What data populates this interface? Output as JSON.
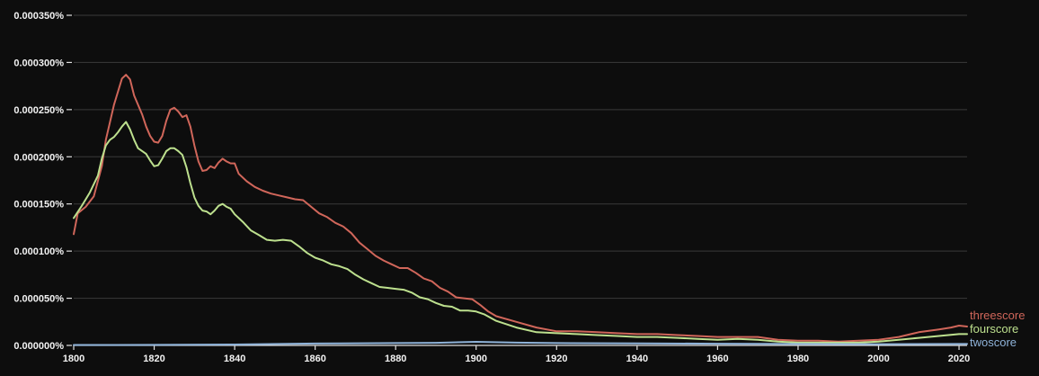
{
  "chart_data": {
    "type": "line",
    "y_tick_labels": [
      "0.000000%",
      "0.000050%",
      "0.000100%",
      "0.000150%",
      "0.000200%",
      "0.000250%",
      "0.000300%",
      "0.000350%"
    ],
    "y_tick_values": [
      0,
      5e-05,
      0.0001,
      0.00015,
      0.0002,
      0.00025,
      0.0003,
      0.00035
    ],
    "x_tick_labels": [
      "1800",
      "1820",
      "1840",
      "1860",
      "1880",
      "1900",
      "1920",
      "1940",
      "1960",
      "1980",
      "2000",
      "2020"
    ],
    "x_tick_values": [
      1800,
      1820,
      1840,
      1860,
      1880,
      1900,
      1920,
      1940,
      1960,
      1980,
      2000,
      2020
    ],
    "xlim": [
      1800,
      2022
    ],
    "ylim": [
      0,
      0.00035
    ],
    "grid": "horizontal",
    "legend_placement": "right-end-of-lines",
    "background_color": "#0d0d0d",
    "grid_color": "#3a3a3a",
    "axis_color": "#e0e0e0",
    "series": [
      {
        "name": "threescore",
        "color": "#d0665a",
        "points": [
          [
            1800,
            0.000118
          ],
          [
            1801,
            0.00014
          ],
          [
            1803,
            0.000147
          ],
          [
            1805,
            0.000158
          ],
          [
            1807,
            0.00019
          ],
          [
            1808,
            0.000218
          ],
          [
            1810,
            0.000255
          ],
          [
            1812,
            0.000283
          ],
          [
            1813,
            0.000287
          ],
          [
            1814,
            0.000282
          ],
          [
            1815,
            0.000265
          ],
          [
            1817,
            0.000245
          ],
          [
            1818,
            0.000232
          ],
          [
            1819,
            0.000222
          ],
          [
            1820,
            0.000216
          ],
          [
            1821,
            0.000215
          ],
          [
            1822,
            0.000222
          ],
          [
            1823,
            0.000238
          ],
          [
            1824,
            0.00025
          ],
          [
            1825,
            0.000252
          ],
          [
            1826,
            0.000248
          ],
          [
            1827,
            0.000242
          ],
          [
            1828,
            0.000244
          ],
          [
            1829,
            0.000232
          ],
          [
            1830,
            0.000212
          ],
          [
            1831,
            0.000195
          ],
          [
            1832,
            0.000185
          ],
          [
            1833,
            0.000186
          ],
          [
            1834,
            0.00019
          ],
          [
            1835,
            0.000188
          ],
          [
            1836,
            0.000194
          ],
          [
            1837,
            0.000198
          ],
          [
            1838,
            0.000195
          ],
          [
            1839,
            0.000193
          ],
          [
            1840,
            0.000193
          ],
          [
            1841,
            0.000182
          ],
          [
            1843,
            0.000174
          ],
          [
            1845,
            0.000168
          ],
          [
            1847,
            0.000164
          ],
          [
            1849,
            0.000161
          ],
          [
            1851,
            0.000159
          ],
          [
            1853,
            0.000157
          ],
          [
            1855,
            0.000155
          ],
          [
            1857,
            0.000154
          ],
          [
            1859,
            0.000147
          ],
          [
            1861,
            0.00014
          ],
          [
            1863,
            0.000136
          ],
          [
            1865,
            0.00013
          ],
          [
            1867,
            0.000126
          ],
          [
            1869,
            0.000119
          ],
          [
            1871,
            0.000109
          ],
          [
            1873,
            0.000102
          ],
          [
            1875,
            9.5e-05
          ],
          [
            1877,
            9e-05
          ],
          [
            1879,
            8.6e-05
          ],
          [
            1881,
            8.2e-05
          ],
          [
            1883,
            8.2e-05
          ],
          [
            1885,
            7.7e-05
          ],
          [
            1887,
            7.1e-05
          ],
          [
            1889,
            6.8e-05
          ],
          [
            1891,
            6.1e-05
          ],
          [
            1893,
            5.7e-05
          ],
          [
            1895,
            5.1e-05
          ],
          [
            1897,
            5e-05
          ],
          [
            1899,
            4.9e-05
          ],
          [
            1901,
            4.3e-05
          ],
          [
            1903,
            3.6e-05
          ],
          [
            1905,
            3.1e-05
          ],
          [
            1910,
            2.5e-05
          ],
          [
            1915,
            1.9e-05
          ],
          [
            1920,
            1.5e-05
          ],
          [
            1925,
            1.5e-05
          ],
          [
            1930,
            1.4e-05
          ],
          [
            1935,
            1.3e-05
          ],
          [
            1940,
            1.2e-05
          ],
          [
            1945,
            1.2e-05
          ],
          [
            1950,
            1.1e-05
          ],
          [
            1955,
            1e-05
          ],
          [
            1960,
            9e-06
          ],
          [
            1965,
            9e-06
          ],
          [
            1970,
            9e-06
          ],
          [
            1975,
            6e-06
          ],
          [
            1980,
            5e-06
          ],
          [
            1985,
            5e-06
          ],
          [
            1990,
            4e-06
          ],
          [
            1995,
            5e-06
          ],
          [
            2000,
            6e-06
          ],
          [
            2005,
            9e-06
          ],
          [
            2010,
            1.4e-05
          ],
          [
            2015,
            1.7e-05
          ],
          [
            2018,
            1.9e-05
          ],
          [
            2020,
            2.1e-05
          ],
          [
            2022,
            2e-05
          ]
        ]
      },
      {
        "name": "fourscore",
        "color": "#bde08e",
        "points": [
          [
            1800,
            0.000135
          ],
          [
            1802,
            0.000148
          ],
          [
            1804,
            0.000162
          ],
          [
            1806,
            0.00018
          ],
          [
            1807,
            0.000198
          ],
          [
            1808,
            0.000212
          ],
          [
            1809,
            0.000218
          ],
          [
            1810,
            0.000221
          ],
          [
            1811,
            0.000226
          ],
          [
            1812,
            0.000232
          ],
          [
            1813,
            0.000237
          ],
          [
            1814,
            0.000229
          ],
          [
            1815,
            0.000218
          ],
          [
            1816,
            0.000209
          ],
          [
            1818,
            0.000203
          ],
          [
            1819,
            0.000196
          ],
          [
            1820,
            0.00019
          ],
          [
            1821,
            0.000191
          ],
          [
            1822,
            0.000198
          ],
          [
            1823,
            0.000206
          ],
          [
            1824,
            0.000209
          ],
          [
            1825,
            0.000209
          ],
          [
            1826,
            0.000206
          ],
          [
            1827,
            0.000202
          ],
          [
            1828,
            0.000189
          ],
          [
            1829,
            0.000172
          ],
          [
            1830,
            0.000157
          ],
          [
            1831,
            0.000148
          ],
          [
            1832,
            0.000143
          ],
          [
            1833,
            0.000142
          ],
          [
            1834,
            0.000139
          ],
          [
            1835,
            0.000143
          ],
          [
            1836,
            0.000148
          ],
          [
            1837,
            0.00015
          ],
          [
            1838,
            0.000147
          ],
          [
            1839,
            0.000145
          ],
          [
            1840,
            0.000139
          ],
          [
            1842,
            0.000131
          ],
          [
            1844,
            0.000122
          ],
          [
            1846,
            0.000117
          ],
          [
            1848,
            0.000112
          ],
          [
            1850,
            0.000111
          ],
          [
            1852,
            0.000112
          ],
          [
            1854,
            0.000111
          ],
          [
            1856,
            0.000105
          ],
          [
            1858,
            9.8e-05
          ],
          [
            1860,
            9.3e-05
          ],
          [
            1862,
            9e-05
          ],
          [
            1864,
            8.6e-05
          ],
          [
            1866,
            8.4e-05
          ],
          [
            1868,
            8.1e-05
          ],
          [
            1870,
            7.5e-05
          ],
          [
            1872,
            7e-05
          ],
          [
            1874,
            6.6e-05
          ],
          [
            1876,
            6.2e-05
          ],
          [
            1878,
            6.1e-05
          ],
          [
            1880,
            6e-05
          ],
          [
            1882,
            5.9e-05
          ],
          [
            1884,
            5.6e-05
          ],
          [
            1886,
            5.1e-05
          ],
          [
            1888,
            4.9e-05
          ],
          [
            1890,
            4.5e-05
          ],
          [
            1892,
            4.2e-05
          ],
          [
            1894,
            4.1e-05
          ],
          [
            1896,
            3.7e-05
          ],
          [
            1898,
            3.7e-05
          ],
          [
            1900,
            3.6e-05
          ],
          [
            1902,
            3.3e-05
          ],
          [
            1905,
            2.6e-05
          ],
          [
            1910,
            1.9e-05
          ],
          [
            1915,
            1.4e-05
          ],
          [
            1920,
            1.3e-05
          ],
          [
            1925,
            1.2e-05
          ],
          [
            1930,
            1.1e-05
          ],
          [
            1935,
            1e-05
          ],
          [
            1940,
            9e-06
          ],
          [
            1945,
            9e-06
          ],
          [
            1950,
            8e-06
          ],
          [
            1955,
            7e-06
          ],
          [
            1960,
            6e-06
          ],
          [
            1965,
            7e-06
          ],
          [
            1970,
            6e-06
          ],
          [
            1975,
            4e-06
          ],
          [
            1980,
            3e-06
          ],
          [
            1985,
            3e-06
          ],
          [
            1990,
            3e-06
          ],
          [
            1995,
            3e-06
          ],
          [
            2000,
            4e-06
          ],
          [
            2005,
            6e-06
          ],
          [
            2010,
            8e-06
          ],
          [
            2015,
            1e-05
          ],
          [
            2020,
            1.2e-05
          ],
          [
            2022,
            1.2e-05
          ]
        ]
      },
      {
        "name": "twoscore",
        "color": "#8fb3d9",
        "points": [
          [
            1800,
            5e-07
          ],
          [
            1820,
            6e-07
          ],
          [
            1840,
            1e-06
          ],
          [
            1860,
            2e-06
          ],
          [
            1880,
            2.5e-06
          ],
          [
            1890,
            2.8e-06
          ],
          [
            1900,
            3.8e-06
          ],
          [
            1910,
            3e-06
          ],
          [
            1920,
            2.5e-06
          ],
          [
            1940,
            2.2e-06
          ],
          [
            1960,
            1.8e-06
          ],
          [
            1980,
            1.5e-06
          ],
          [
            2000,
            1.3e-06
          ],
          [
            2020,
            1.5e-06
          ],
          [
            2022,
            1.5e-06
          ]
        ]
      }
    ]
  }
}
